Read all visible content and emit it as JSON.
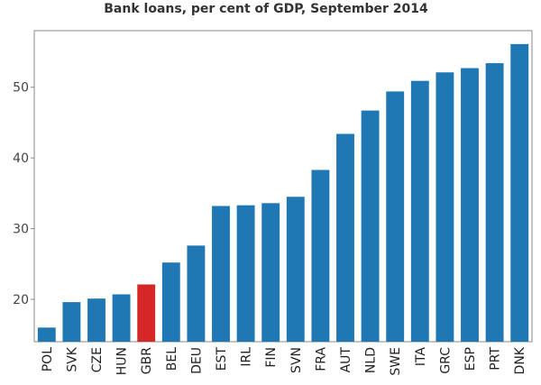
{
  "chart_data": {
    "type": "bar",
    "title": "Bank loans, per cent of GDP, September 2014",
    "xlabel": "",
    "ylabel": "",
    "categories": [
      "POL",
      "SVK",
      "CZE",
      "HUN",
      "GBR",
      "BEL",
      "DEU",
      "EST",
      "IRL",
      "FIN",
      "SVN",
      "FRA",
      "AUT",
      "NLD",
      "SWE",
      "ITA",
      "GRC",
      "ESP",
      "PRT",
      "DNK"
    ],
    "values": [
      16.0,
      19.6,
      20.1,
      20.7,
      22.1,
      25.2,
      27.6,
      33.2,
      33.3,
      33.6,
      34.5,
      38.3,
      43.4,
      46.7,
      49.4,
      50.9,
      52.1,
      52.7,
      53.4,
      56.1
    ],
    "ylim": [
      14,
      58
    ],
    "yticks": [
      20,
      30,
      40,
      50
    ],
    "highlight_category": "GBR",
    "grid": false,
    "colors": {
      "bar": "#1f77b4",
      "highlight": "#d62728",
      "axis": "#888888"
    }
  }
}
